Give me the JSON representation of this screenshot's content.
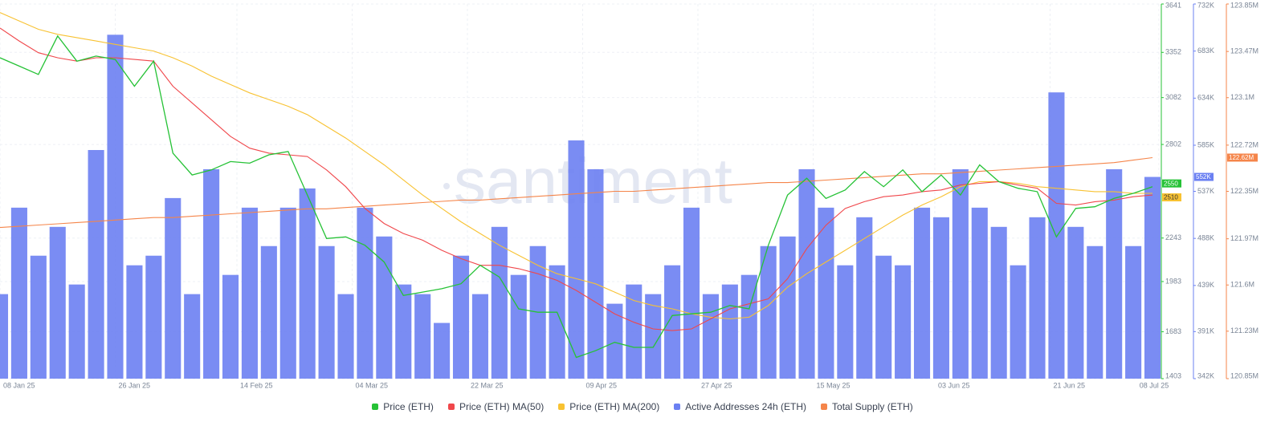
{
  "chart_data": {
    "type": "line",
    "watermark": "santiment",
    "x": [
      "08 Jan 25",
      "11 Jan 25",
      "14 Jan 25",
      "17 Jan 25",
      "20 Jan 25",
      "23 Jan 25",
      "26 Jan 25",
      "29 Jan 25",
      "01 Feb 25",
      "04 Feb 25",
      "07 Feb 25",
      "10 Feb 25",
      "13 Feb 25",
      "16 Feb 25",
      "19 Feb 25",
      "22 Feb 25",
      "25 Feb 25",
      "28 Feb 25",
      "03 Mar 25",
      "06 Mar 25",
      "09 Mar 25",
      "12 Mar 25",
      "15 Mar 25",
      "18 Mar 25",
      "21 Mar 25",
      "24 Mar 25",
      "27 Mar 25",
      "30 Mar 25",
      "02 Apr 25",
      "05 Apr 25",
      "08 Apr 25",
      "11 Apr 25",
      "14 Apr 25",
      "17 Apr 25",
      "20 Apr 25",
      "23 Apr 25",
      "26 Apr 25",
      "29 Apr 25",
      "02 May 25",
      "05 May 25",
      "08 May 25",
      "11 May 25",
      "14 May 25",
      "17 May 25",
      "20 May 25",
      "23 May 25",
      "26 May 25",
      "29 May 25",
      "01 Jun 25",
      "04 Jun 25",
      "07 Jun 25",
      "10 Jun 25",
      "13 Jun 25",
      "16 Jun 25",
      "19 Jun 25",
      "22 Jun 25",
      "25 Jun 25",
      "28 Jun 25",
      "01 Jul 25",
      "04 Jul 25",
      "07 Jul 25"
    ],
    "xlim": [
      "08 Jan 25",
      "08 Jul 25"
    ],
    "xticks": [
      "08 Jan 25",
      "26 Jan 25",
      "14 Feb 25",
      "04 Mar 25",
      "22 Mar 25",
      "09 Apr 25",
      "27 Apr 25",
      "15 May 25",
      "03 Jun 25",
      "21 Jun 25",
      "08 Jul 25"
    ],
    "ylim": [
      1403,
      3641
    ],
    "yticks": [
      1403,
      1683,
      1983,
      2243,
      2802,
      3082,
      3352,
      3641
    ],
    "y2lim": [
      342,
      732
    ],
    "y2ticks": [
      {
        "value": 342,
        "label": "342K"
      },
      {
        "value": 391,
        "label": "391K"
      },
      {
        "value": 439,
        "label": "439K"
      },
      {
        "value": 488,
        "label": "488K"
      },
      {
        "value": 537,
        "label": "537K"
      },
      {
        "value": 585,
        "label": "585K"
      },
      {
        "value": 634,
        "label": "634K"
      },
      {
        "value": 683,
        "label": "683K"
      },
      {
        "value": 732,
        "label": "732K"
      }
    ],
    "y3lim": [
      120.85,
      123.85
    ],
    "y3ticks": [
      {
        "value": 120.85,
        "label": "120.85M"
      },
      {
        "value": 121.23,
        "label": "121.23M"
      },
      {
        "value": 121.6,
        "label": "121.6M"
      },
      {
        "value": 121.97,
        "label": "121.97M"
      },
      {
        "value": 122.35,
        "label": "122.35M"
      },
      {
        "value": 122.72,
        "label": "122.72M"
      },
      {
        "value": 123.1,
        "label": "123.1M"
      },
      {
        "value": 123.47,
        "label": "123.47M"
      },
      {
        "value": 123.85,
        "label": "123.85M"
      }
    ],
    "grid": true,
    "series": [
      {
        "name": "Price (ETH)",
        "color": "#26c236",
        "kind": "line",
        "axis": "y",
        "last_value_label": "2550",
        "values": [
          3320,
          3270,
          3220,
          3450,
          3300,
          3330,
          3310,
          3150,
          3300,
          2750,
          2620,
          2650,
          2700,
          2690,
          2740,
          2760,
          2500,
          2240,
          2250,
          2200,
          2100,
          1900,
          1920,
          1940,
          1970,
          2080,
          2010,
          1820,
          1800,
          1800,
          1530,
          1570,
          1620,
          1590,
          1590,
          1780,
          1790,
          1800,
          1840,
          1820,
          2200,
          2500,
          2600,
          2480,
          2530,
          2640,
          2550,
          2650,
          2520,
          2620,
          2500,
          2680,
          2580,
          2540,
          2520,
          2250,
          2420,
          2430,
          2480,
          2510,
          2550
        ]
      },
      {
        "name": "Price (ETH) MA(50)",
        "color": "#f0474b",
        "kind": "line",
        "axis": "y",
        "values": [
          3497,
          3420,
          3350,
          3320,
          3300,
          3320,
          3320,
          3310,
          3300,
          3150,
          3050,
          2950,
          2850,
          2780,
          2750,
          2740,
          2730,
          2650,
          2550,
          2420,
          2330,
          2270,
          2230,
          2170,
          2120,
          2080,
          2080,
          2060,
          2030,
          1990,
          1930,
          1860,
          1790,
          1740,
          1700,
          1690,
          1700,
          1760,
          1820,
          1850,
          1880,
          2000,
          2180,
          2320,
          2420,
          2460,
          2490,
          2500,
          2520,
          2530,
          2560,
          2570,
          2580,
          2560,
          2540,
          2450,
          2440,
          2460,
          2470,
          2490,
          2500
        ]
      },
      {
        "name": "Price (ETH) MA(200)",
        "color": "#f8c232",
        "kind": "line",
        "axis": "y",
        "last_value_label": "2510",
        "values": [
          3590,
          3540,
          3490,
          3460,
          3440,
          3420,
          3400,
          3380,
          3360,
          3320,
          3270,
          3210,
          3160,
          3110,
          3070,
          3030,
          2980,
          2910,
          2840,
          2760,
          2680,
          2590,
          2500,
          2420,
          2340,
          2270,
          2200,
          2140,
          2080,
          2030,
          2000,
          1970,
          1920,
          1870,
          1840,
          1820,
          1790,
          1770,
          1760,
          1770,
          1840,
          1950,
          2030,
          2100,
          2170,
          2240,
          2310,
          2380,
          2440,
          2490,
          2550,
          2580,
          2580,
          2570,
          2550,
          2540,
          2530,
          2520,
          2520,
          2510,
          2510
        ]
      },
      {
        "name": "Active Addresses 24h (ETH)",
        "color": "#6b80f2",
        "kind": "bar",
        "axis": "y2",
        "last_value_label": "552K",
        "values": [
          430,
          520,
          470,
          500,
          440,
          580,
          700,
          460,
          470,
          530,
          430,
          560,
          450,
          520,
          480,
          520,
          540,
          480,
          430,
          520,
          490,
          440,
          430,
          400,
          470,
          430,
          500,
          450,
          480,
          460,
          590,
          560,
          420,
          440,
          430,
          460,
          520,
          430,
          440,
          450,
          480,
          490,
          560,
          520,
          460,
          510,
          470,
          460,
          520,
          510,
          560,
          520,
          500,
          460,
          510,
          640,
          500,
          480,
          560,
          480,
          552
        ]
      },
      {
        "name": "Total Supply (ETH)",
        "color": "#f5854a",
        "kind": "line",
        "axis": "y3",
        "last_value_label": "122.62M",
        "values": [
          122.06,
          122.07,
          122.08,
          122.09,
          122.1,
          122.11,
          122.12,
          122.13,
          122.14,
          122.14,
          122.15,
          122.16,
          122.17,
          122.18,
          122.19,
          122.2,
          122.21,
          122.21,
          122.22,
          122.23,
          122.24,
          122.25,
          122.26,
          122.27,
          122.28,
          122.28,
          122.29,
          122.3,
          122.31,
          122.32,
          122.33,
          122.34,
          122.35,
          122.35,
          122.36,
          122.37,
          122.38,
          122.39,
          122.4,
          122.41,
          122.42,
          122.42,
          122.43,
          122.44,
          122.45,
          122.46,
          122.47,
          122.48,
          122.49,
          122.49,
          122.5,
          122.51,
          122.52,
          122.53,
          122.54,
          122.55,
          122.56,
          122.57,
          122.58,
          122.6,
          122.62
        ]
      }
    ]
  }
}
